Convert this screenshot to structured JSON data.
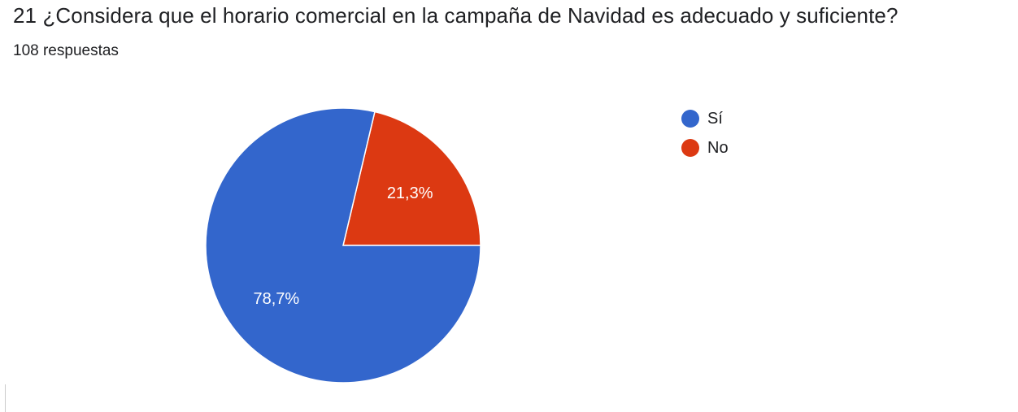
{
  "header": {
    "question": "21 ¿Considera que el horario comercial en la campaña de Navidad es adecuado y suficiente?",
    "responses": "108 respuestas"
  },
  "chart_data": {
    "type": "pie",
    "categories": [
      "Sí",
      "No"
    ],
    "values": [
      78.7,
      21.3
    ],
    "labels": [
      "78,7%",
      "21,3%"
    ],
    "colors": [
      "#3366cc",
      "#dc3912"
    ],
    "legend_position": "right"
  }
}
